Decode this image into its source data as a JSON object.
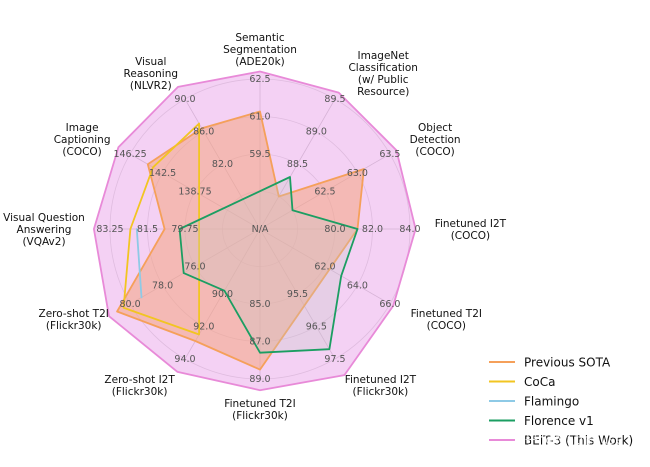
{
  "chart_data": {
    "type": "radar",
    "center_label": "N/A",
    "axes": [
      {
        "lines": [
          "Semantic",
          "Segmentation",
          "(ADE20k)"
        ],
        "ticks": [
          "59.5",
          "61.0",
          "62.5"
        ]
      },
      {
        "lines": [
          "ImageNet",
          "Classification",
          "(w/ Public",
          "Resource)"
        ],
        "ticks": [
          "88.5",
          "89.0",
          "89.5"
        ]
      },
      {
        "lines": [
          "Object",
          "Detection",
          "(COCO)"
        ],
        "ticks": [
          "62.5",
          "63.0",
          "63.5"
        ]
      },
      {
        "lines": [
          "Finetuned I2T",
          "(COCO)"
        ],
        "ticks": [
          "80.0",
          "82.0",
          "84.0"
        ]
      },
      {
        "lines": [
          "Finetuned T2I",
          "(COCO)"
        ],
        "ticks": [
          "62.0",
          "64.0",
          "66.0"
        ]
      },
      {
        "lines": [
          "Finetuned I2T",
          "(Flickr30k)"
        ],
        "ticks": [
          "95.5",
          "96.5",
          "97.5"
        ]
      },
      {
        "lines": [
          "Finetuned T2I",
          "(Flickr30k)"
        ],
        "ticks": [
          "85.0",
          "87.0",
          "89.0"
        ]
      },
      {
        "lines": [
          "Zero-shot I2T",
          "(Flickr30k)"
        ],
        "ticks": [
          "90.0",
          "92.0",
          "94.0"
        ]
      },
      {
        "lines": [
          "Zero-shot T2I",
          "(Flickr30k)"
        ],
        "ticks": [
          "76.0",
          "78.0",
          "80.0"
        ]
      },
      {
        "lines": [
          "Visual Question",
          "Answering",
          "(VQAv2)"
        ],
        "ticks": [
          "79.75",
          "81.5",
          "83.25"
        ]
      },
      {
        "lines": [
          "Image",
          "Captioning",
          "(COCO)"
        ],
        "ticks": [
          "138.75",
          "142.5",
          "146.25"
        ]
      },
      {
        "lines": [
          "Visual",
          "Reasoning",
          "(NLVR2)"
        ],
        "ticks": [
          "82.0",
          "86.0",
          "90.0"
        ]
      }
    ],
    "series": [
      {
        "name": "Previous SOTA",
        "color": "#f5a05a",
        "fill": "#f4a582",
        "fill_opacity": 0.55,
        "values": [
          61.2,
          88.0,
          63.1,
          81.2,
          null,
          null,
          88.5,
          92.9,
          80.8,
          80.7,
          144.2,
          86.4
        ]
      },
      {
        "name": "CoCa",
        "color": "#f2c521",
        "fill": null,
        "fill_opacity": 0,
        "values": [
          null,
          null,
          null,
          null,
          null,
          null,
          null,
          92.5,
          80.4,
          82.3,
          143.6,
          87.0
        ]
      },
      {
        "name": "Flamingo",
        "color": "#8ecae6",
        "fill": null,
        "fill_opacity": 0,
        "values": [
          null,
          null,
          null,
          null,
          null,
          null,
          null,
          null,
          79.3,
          82.0,
          null,
          null
        ]
      },
      {
        "name": "Florence v1",
        "color": "#1b9e62",
        "fill": "#c8c8c8",
        "fill_opacity": 0.3,
        "values": [
          null,
          88.3,
          62.0,
          81.2,
          63.0,
          97.2,
          87.6,
          89.8,
          76.7,
          80.0,
          null,
          null
        ]
      },
      {
        "name": "BEiT-3 (This Work)",
        "color": "#e88ad8",
        "fill": "#e79ae6",
        "fill_opacity": 0.45,
        "values": [
          62.8,
          89.6,
          63.6,
          84.3,
          66.2,
          98.0,
          89.6,
          94.8,
          81.3,
          84.0,
          147.6,
          91.5
        ]
      }
    ],
    "legend_position": "bottom-right",
    "grid": true
  },
  "watermark": "知乎 @Mathmuse"
}
